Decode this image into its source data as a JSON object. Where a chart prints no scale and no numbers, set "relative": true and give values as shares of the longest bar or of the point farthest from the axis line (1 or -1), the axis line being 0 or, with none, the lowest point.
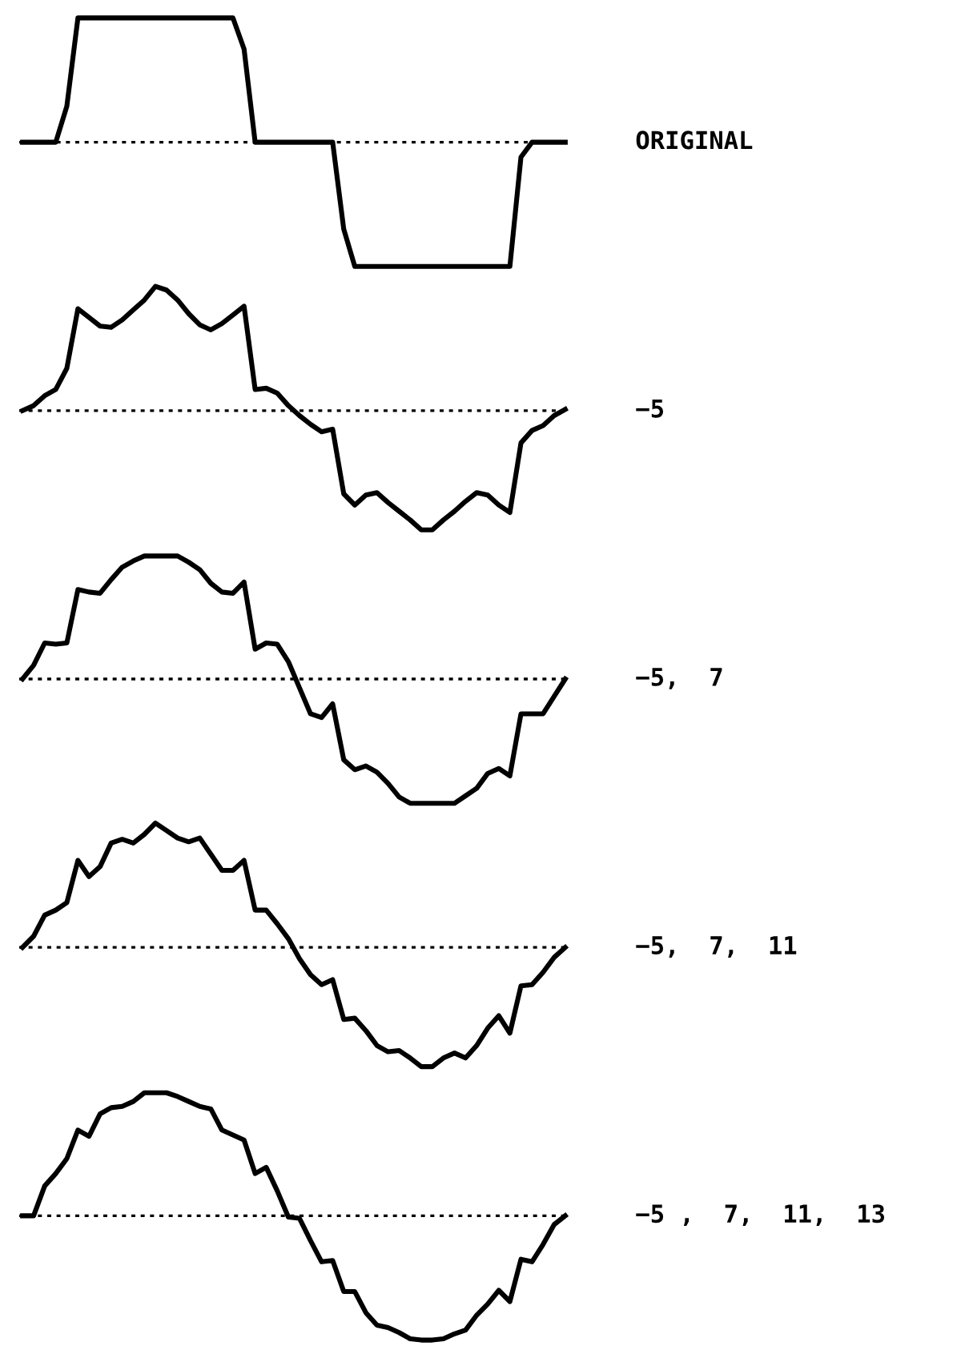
{
  "chart_data": [
    {
      "type": "line",
      "relative": true,
      "categories": [
        null,
        null,
        null,
        null,
        null,
        null,
        null,
        null,
        null,
        null,
        null,
        null,
        null,
        null,
        null,
        null,
        null,
        null,
        null,
        null,
        null,
        null,
        null,
        null,
        null,
        null,
        null,
        null,
        null,
        null,
        null,
        null,
        null,
        null,
        null,
        null,
        null,
        null,
        null,
        null,
        null,
        null,
        null,
        null,
        null,
        null,
        null,
        null,
        null,
        null
      ],
      "ref_lines": [
        {
          "axis": "y",
          "value": 0,
          "line_style": "dotted",
          "color": "#000000"
        }
      ],
      "series": [
        {
          "name": "ORIGINAL",
          "color": "#000000",
          "values": [
            0,
            0,
            0,
            0,
            0.29,
            1,
            1,
            1,
            1,
            1,
            1,
            1,
            1,
            1,
            1,
            1,
            1,
            1,
            1,
            1,
            0.75,
            0,
            0,
            0,
            0,
            0,
            0,
            0,
            0,
            -0.7,
            -1,
            -1,
            -1,
            -1,
            -1,
            -1,
            -1,
            -1,
            -1,
            -1,
            -1,
            -1,
            -1,
            -1,
            -1,
            -0.12,
            0,
            0,
            0,
            0
          ]
        }
      ]
    },
    {
      "type": "line",
      "relative": true,
      "categories": [
        null,
        null,
        null,
        null,
        null,
        null,
        null,
        null,
        null,
        null,
        null,
        null,
        null,
        null,
        null,
        null,
        null,
        null,
        null,
        null,
        null,
        null,
        null,
        null,
        null,
        null,
        null,
        null,
        null,
        null,
        null,
        null,
        null,
        null,
        null,
        null,
        null,
        null,
        null,
        null,
        null,
        null,
        null,
        null,
        null,
        null,
        null,
        null,
        null,
        null
      ],
      "ref_lines": [
        {
          "axis": "y",
          "value": 0,
          "line_style": "dotted",
          "color": "#000000"
        }
      ],
      "series": [
        {
          "name": "−5",
          "color": "#000000",
          "values": [
            0,
            0.04,
            0.12,
            0.17,
            0.34,
            0.82,
            0.75,
            0.68,
            0.67,
            0.73,
            0.81,
            0.89,
            1,
            0.97,
            0.89,
            0.78,
            0.69,
            0.65,
            0.7,
            0.77,
            0.84,
            0.17,
            0.18,
            0.14,
            0.04,
            -0.04,
            -0.11,
            -0.17,
            -0.15,
            -0.67,
            -0.76,
            -0.68,
            -0.66,
            -0.74,
            -0.81,
            -0.88,
            -0.96,
            -0.96,
            -0.88,
            -0.81,
            -0.73,
            -0.66,
            -0.68,
            -0.76,
            -0.82,
            -0.26,
            -0.16,
            -0.12,
            -0.04,
            0.01
          ]
        }
      ]
    },
    {
      "type": "line",
      "relative": true,
      "categories": [
        null,
        null,
        null,
        null,
        null,
        null,
        null,
        null,
        null,
        null,
        null,
        null,
        null,
        null,
        null,
        null,
        null,
        null,
        null,
        null,
        null,
        null,
        null,
        null,
        null,
        null,
        null,
        null,
        null,
        null,
        null,
        null,
        null,
        null,
        null,
        null,
        null,
        null,
        null,
        null,
        null,
        null,
        null,
        null,
        null,
        null,
        null,
        null,
        null,
        null
      ],
      "ref_lines": [
        {
          "axis": "y",
          "value": 0,
          "line_style": "dotted",
          "color": "#000000"
        }
      ],
      "series": [
        {
          "name": "−5,  7",
          "color": "#000000",
          "values": [
            0,
            0.11,
            0.29,
            0.28,
            0.29,
            0.72,
            0.7,
            0.69,
            0.8,
            0.9,
            0.95,
            0.99,
            0.99,
            0.99,
            0.99,
            0.94,
            0.88,
            0.77,
            0.7,
            0.69,
            0.78,
            0.24,
            0.29,
            0.28,
            0.14,
            -0.07,
            -0.28,
            -0.31,
            -0.2,
            -0.65,
            -0.73,
            -0.7,
            -0.75,
            -0.84,
            -0.95,
            -1,
            -1,
            -1,
            -1,
            -1,
            -0.94,
            -0.88,
            -0.76,
            -0.72,
            -0.78,
            -0.28,
            -0.28,
            -0.28,
            -0.14,
            0
          ]
        }
      ]
    },
    {
      "type": "line",
      "relative": true,
      "categories": [
        null,
        null,
        null,
        null,
        null,
        null,
        null,
        null,
        null,
        null,
        null,
        null,
        null,
        null,
        null,
        null,
        null,
        null,
        null,
        null,
        null,
        null,
        null,
        null,
        null,
        null,
        null,
        null,
        null,
        null,
        null,
        null,
        null,
        null,
        null,
        null,
        null,
        null,
        null,
        null,
        null,
        null,
        null,
        null,
        null,
        null,
        null,
        null,
        null,
        null
      ],
      "ref_lines": [
        {
          "axis": "y",
          "value": 0,
          "line_style": "dotted",
          "color": "#000000"
        }
      ],
      "series": [
        {
          "name": "−5,  7,  11",
          "color": "#000000",
          "values": [
            0,
            0.09,
            0.26,
            0.3,
            0.36,
            0.7,
            0.57,
            0.65,
            0.84,
            0.87,
            0.84,
            0.91,
            1,
            0.94,
            0.88,
            0.85,
            0.88,
            0.75,
            0.62,
            0.62,
            0.7,
            0.3,
            0.3,
            0.19,
            0.07,
            -0.09,
            -0.22,
            -0.3,
            -0.26,
            -0.58,
            -0.57,
            -0.67,
            -0.79,
            -0.84,
            -0.83,
            -0.89,
            -0.96,
            -0.96,
            -0.89,
            -0.85,
            -0.89,
            -0.79,
            -0.65,
            -0.55,
            -0.69,
            -0.31,
            -0.3,
            -0.2,
            -0.08,
            0
          ]
        }
      ]
    },
    {
      "type": "line",
      "relative": true,
      "categories": [
        null,
        null,
        null,
        null,
        null,
        null,
        null,
        null,
        null,
        null,
        null,
        null,
        null,
        null,
        null,
        null,
        null,
        null,
        null,
        null,
        null,
        null,
        null,
        null,
        null,
        null,
        null,
        null,
        null,
        null,
        null,
        null,
        null,
        null,
        null,
        null,
        null,
        null,
        null,
        null,
        null,
        null,
        null,
        null,
        null,
        null,
        null,
        null,
        null,
        null
      ],
      "ref_lines": [
        {
          "axis": "y",
          "value": 0,
          "line_style": "dotted",
          "color": "#000000"
        }
      ],
      "series": [
        {
          "name": "−5 ,  7,  11,  13",
          "color": "#000000",
          "values": [
            0,
            0,
            0.24,
            0.34,
            0.46,
            0.69,
            0.64,
            0.82,
            0.87,
            0.88,
            0.92,
            0.99,
            0.99,
            0.99,
            0.96,
            0.92,
            0.88,
            0.86,
            0.69,
            0.65,
            0.61,
            0.34,
            0.39,
            0.2,
            -0.01,
            -0.02,
            -0.2,
            -0.37,
            -0.36,
            -0.61,
            -0.61,
            -0.78,
            -0.88,
            -0.9,
            -0.94,
            -0.99,
            -1,
            -1,
            -0.99,
            -0.95,
            -0.92,
            -0.8,
            -0.71,
            -0.6,
            -0.69,
            -0.35,
            -0.37,
            -0.23,
            -0.07,
            0
          ]
        }
      ]
    }
  ]
}
